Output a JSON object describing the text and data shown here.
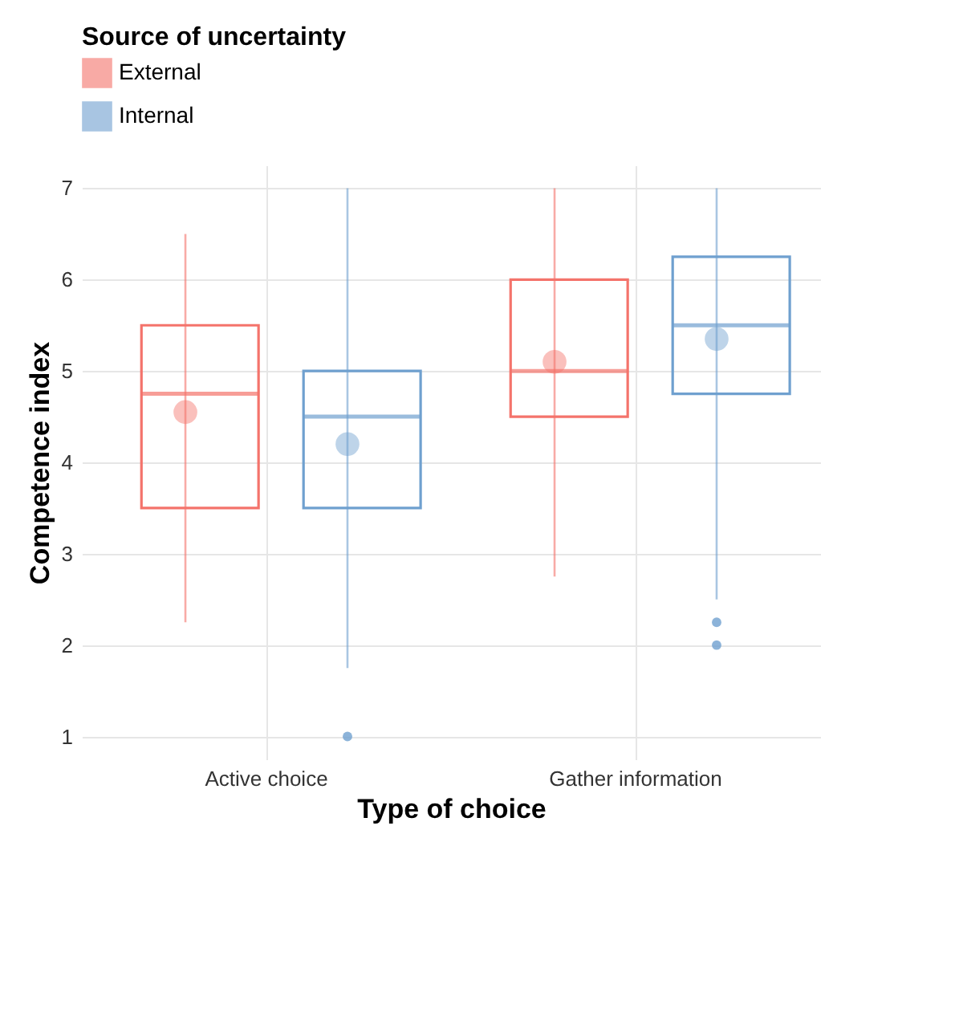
{
  "chart_data": {
    "type": "box",
    "xlabel": "Type of choice",
    "ylabel": "Competence index",
    "legend_title": "Source of uncertainty",
    "legend": "top",
    "grid": true,
    "categories": [
      "Active choice",
      "Gather information"
    ],
    "ylim": [
      0.75,
      7.25
    ],
    "yticks": [
      1,
      2,
      3,
      4,
      5,
      6,
      7
    ],
    "series": [
      {
        "name": "External",
        "color": "#f4736b",
        "boxes": [
          {
            "low": 2.25,
            "q1": 3.5,
            "median": 4.75,
            "q3": 5.5,
            "high": 6.5,
            "mean": 4.55
          },
          {
            "low": 2.75,
            "q1": 4.5,
            "median": 5,
            "q3": 6,
            "high": 7,
            "mean": 5.1
          }
        ]
      },
      {
        "name": "Internal",
        "color": "#6fa0cf",
        "boxes": [
          {
            "low": 1.75,
            "q1": 3.5,
            "median": 4.5,
            "q3": 5,
            "high": 7,
            "mean": 4.2,
            "outliers": [
              1
            ]
          },
          {
            "low": 2.5,
            "q1": 4.75,
            "median": 5.5,
            "q3": 6.25,
            "high": 7,
            "mean": 5.35,
            "outliers": [
              2.25,
              2
            ]
          }
        ]
      }
    ]
  }
}
